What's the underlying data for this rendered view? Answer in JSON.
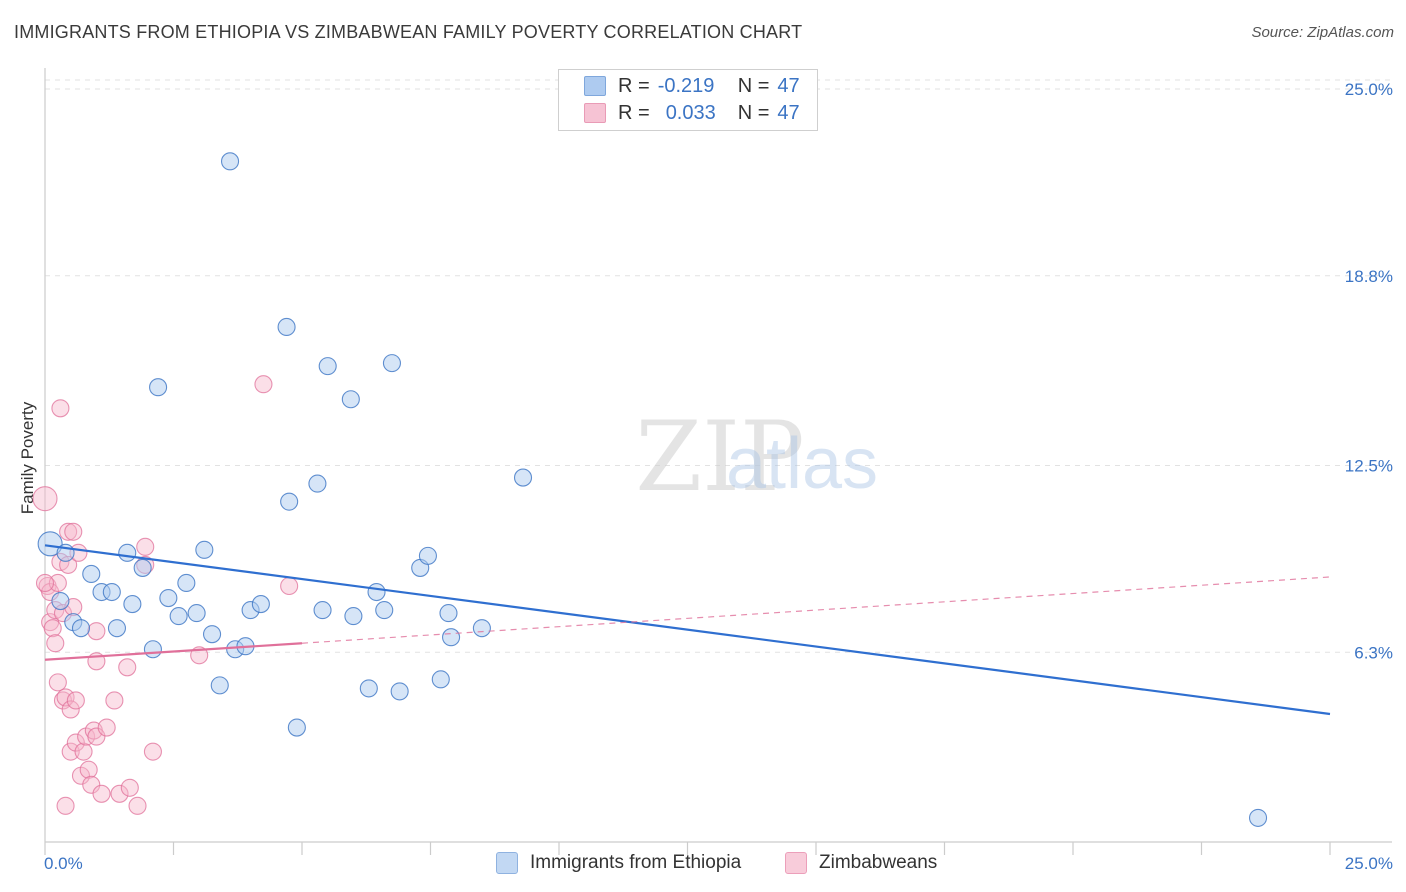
{
  "title": "IMMIGRANTS FROM ETHIOPIA VS ZIMBABWEAN FAMILY POVERTY CORRELATION CHART",
  "source": "Source: ZipAtlas.com",
  "legend": {
    "rows": [
      {
        "r_label": "R =",
        "r_value": "-0.219",
        "n_label": "N =",
        "n_value": "47"
      },
      {
        "r_label": "R =",
        "r_value": "0.033",
        "n_label": "N =",
        "n_value": "47"
      }
    ]
  },
  "bottom_legend": [
    "Immigrants from Ethiopia",
    "Zimbabweans"
  ],
  "watermark": {
    "zip": "ZIP",
    "atlas": "atlas"
  },
  "colors": {
    "blue": "#3b74c4",
    "blue_fill": "#aecbf0",
    "blue_line": "#2f6fd0",
    "pink": "#e0709a",
    "pink_fill": "#f6b8cd"
  },
  "chart_data": {
    "type": "scatter",
    "title": "IMMIGRANTS FROM ETHIOPIA VS ZIMBABWEAN FAMILY POVERTY CORRELATION CHART",
    "xlabel": "",
    "ylabel": "Family Poverty",
    "xlim": [
      0,
      25
    ],
    "ylim": [
      0,
      25.3
    ],
    "x_tick_labels": [
      "0.0%",
      "25.0%"
    ],
    "y_ticks": [
      6.3,
      12.5,
      18.8,
      25.0
    ],
    "y_tick_labels": [
      "6.3%",
      "12.5%",
      "18.8%",
      "25.0%"
    ],
    "grid": true,
    "series": [
      {
        "name": "Immigrants from Ethiopia",
        "R": -0.219,
        "N": 47,
        "trend": {
          "x": [
            0,
            25
          ],
          "y": [
            9.85,
            4.25
          ],
          "style": "solid"
        },
        "points": [
          [
            0.1,
            9.9
          ],
          [
            0.3,
            8.0
          ],
          [
            0.4,
            9.6
          ],
          [
            0.55,
            7.3
          ],
          [
            0.7,
            7.1
          ],
          [
            0.9,
            8.9
          ],
          [
            1.1,
            8.3
          ],
          [
            1.3,
            8.3
          ],
          [
            1.4,
            7.1
          ],
          [
            1.6,
            9.6
          ],
          [
            1.7,
            7.9
          ],
          [
            1.9,
            9.1
          ],
          [
            2.1,
            6.4
          ],
          [
            2.2,
            15.1
          ],
          [
            2.4,
            8.1
          ],
          [
            2.6,
            7.5
          ],
          [
            2.75,
            8.6
          ],
          [
            2.95,
            7.6
          ],
          [
            3.1,
            9.7
          ],
          [
            3.25,
            6.9
          ],
          [
            3.4,
            5.2
          ],
          [
            3.6,
            22.6
          ],
          [
            3.7,
            6.4
          ],
          [
            3.9,
            6.5
          ],
          [
            4.0,
            7.7
          ],
          [
            4.2,
            7.9
          ],
          [
            4.7,
            17.1
          ],
          [
            4.75,
            11.3
          ],
          [
            4.9,
            3.8
          ],
          [
            5.3,
            11.9
          ],
          [
            5.4,
            7.7
          ],
          [
            5.5,
            15.8
          ],
          [
            5.95,
            14.7
          ],
          [
            6.0,
            7.5
          ],
          [
            6.3,
            5.1
          ],
          [
            6.45,
            8.3
          ],
          [
            6.6,
            7.7
          ],
          [
            6.75,
            15.9
          ],
          [
            6.9,
            5.0
          ],
          [
            7.3,
            9.1
          ],
          [
            7.45,
            9.5
          ],
          [
            7.7,
            5.4
          ],
          [
            7.85,
            7.6
          ],
          [
            7.9,
            6.8
          ],
          [
            8.5,
            7.1
          ],
          [
            9.3,
            12.1
          ],
          [
            23.6,
            0.8
          ]
        ]
      },
      {
        "name": "Zimbabweans",
        "R": 0.033,
        "N": 47,
        "trend": {
          "x": [
            0,
            5
          ],
          "y": [
            6.05,
            6.6
          ],
          "style": "solid"
        },
        "trend_extension": {
          "x": [
            5,
            25
          ],
          "y": [
            6.6,
            8.8
          ],
          "style": "dashed"
        },
        "points": [
          [
            0.0,
            11.4
          ],
          [
            0.05,
            8.5
          ],
          [
            0.1,
            8.3
          ],
          [
            0.1,
            7.3
          ],
          [
            0.15,
            7.1
          ],
          [
            0.2,
            6.6
          ],
          [
            0.2,
            7.7
          ],
          [
            0.25,
            8.6
          ],
          [
            0.25,
            5.3
          ],
          [
            0.3,
            9.3
          ],
          [
            0.3,
            14.4
          ],
          [
            0.35,
            7.6
          ],
          [
            0.35,
            4.7
          ],
          [
            0.4,
            1.2
          ],
          [
            0.4,
            4.8
          ],
          [
            0.45,
            9.2
          ],
          [
            0.45,
            10.3
          ],
          [
            0.5,
            3.0
          ],
          [
            0.5,
            4.4
          ],
          [
            0.55,
            10.3
          ],
          [
            0.55,
            7.8
          ],
          [
            0.6,
            4.7
          ],
          [
            0.6,
            3.3
          ],
          [
            0.65,
            9.6
          ],
          [
            0.7,
            2.2
          ],
          [
            0.75,
            3.0
          ],
          [
            0.8,
            3.5
          ],
          [
            0.85,
            2.4
          ],
          [
            0.9,
            1.9
          ],
          [
            0.95,
            3.7
          ],
          [
            1.0,
            6.0
          ],
          [
            1.0,
            3.5
          ],
          [
            1.0,
            7.0
          ],
          [
            1.1,
            1.6
          ],
          [
            1.2,
            3.8
          ],
          [
            1.35,
            4.7
          ],
          [
            1.45,
            1.6
          ],
          [
            1.6,
            5.8
          ],
          [
            1.65,
            1.8
          ],
          [
            1.8,
            1.2
          ],
          [
            1.95,
            9.8
          ],
          [
            1.95,
            9.2
          ],
          [
            2.1,
            3.0
          ],
          [
            3.0,
            6.2
          ],
          [
            4.25,
            15.2
          ],
          [
            4.75,
            8.5
          ],
          [
            0.0,
            8.6
          ]
        ]
      }
    ]
  }
}
